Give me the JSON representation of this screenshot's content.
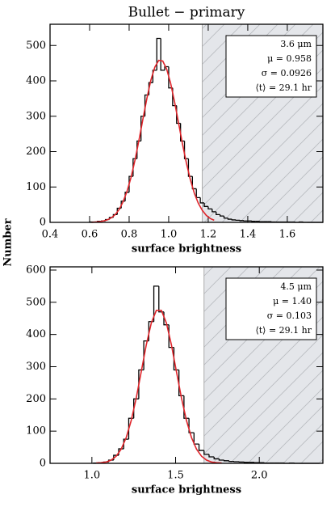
{
  "title": "Bullet − primary",
  "ylabel": "Number",
  "chart_data": [
    {
      "type": "histogram",
      "xlabel": "surface brightness",
      "bins": [
        0.6,
        0.62,
        0.64,
        0.66,
        0.68,
        0.7,
        0.72,
        0.74,
        0.76,
        0.78,
        0.8,
        0.82,
        0.84,
        0.86,
        0.88,
        0.9,
        0.92,
        0.94,
        0.96,
        0.98,
        1.0,
        1.02,
        1.04,
        1.06,
        1.08,
        1.1,
        1.12,
        1.14,
        1.16,
        1.18,
        1.2,
        1.22,
        1.24,
        1.26,
        1.28,
        1.3,
        1.32,
        1.34,
        1.36,
        1.38,
        1.4,
        1.42,
        1.44,
        1.46,
        1.48,
        1.5,
        1.52,
        1.54,
        1.56,
        1.58,
        1.6,
        1.62,
        1.64,
        1.66,
        1.68,
        1.7,
        1.72,
        1.74,
        1.76,
        1.78
      ],
      "counts": [
        1,
        1,
        3,
        4,
        8,
        14,
        22,
        40,
        60,
        85,
        130,
        180,
        230,
        300,
        360,
        395,
        430,
        520,
        430,
        440,
        380,
        330,
        280,
        230,
        180,
        130,
        95,
        70,
        55,
        45,
        38,
        30,
        22,
        18,
        12,
        9,
        7,
        6,
        5,
        4,
        4,
        3,
        3,
        2,
        2,
        2,
        1,
        1,
        1,
        1,
        1,
        1,
        0,
        1,
        0,
        0,
        0,
        0,
        0
      ],
      "color": "#000000",
      "fit": {
        "color": "#e0252b",
        "x": [
          0.61,
          0.63,
          0.65,
          0.67,
          0.69,
          0.71,
          0.73,
          0.75,
          0.77,
          0.79,
          0.81,
          0.83,
          0.85,
          0.87,
          0.89,
          0.91,
          0.93,
          0.95,
          0.97,
          0.99,
          1.01,
          1.03,
          1.05,
          1.07,
          1.09,
          1.11,
          1.13,
          1.15,
          1.17,
          1.19,
          1.21,
          1.23
        ],
        "values": [
          0,
          1,
          2,
          4,
          7,
          13,
          22,
          37,
          59,
          89,
          128,
          177,
          233,
          293,
          351,
          402,
          439,
          458,
          456,
          433,
          393,
          340,
          281,
          221,
          167,
          120,
          82,
          54,
          34,
          20,
          11,
          6
        ]
      },
      "shade_from": 1.17,
      "annotations": [
        "3.6 μm",
        "μ = 0.958",
        "σ = 0.0926",
        "⟨t⟩ = 29.1 hr"
      ],
      "xlim": [
        0.4,
        1.78
      ],
      "ylim": [
        0,
        560
      ],
      "xticks": [
        0.4,
        0.6,
        0.8,
        {
          "value": 1.0,
          "label": "1.0"
        },
        1.2,
        1.4,
        1.6
      ],
      "yticks": [
        0,
        100,
        200,
        300,
        400,
        500
      ]
    },
    {
      "type": "histogram",
      "xlabel": "surface brightness",
      "bins": [
        1.01,
        1.04,
        1.07,
        1.1,
        1.13,
        1.16,
        1.19,
        1.22,
        1.25,
        1.28,
        1.31,
        1.34,
        1.37,
        1.4,
        1.43,
        1.46,
        1.49,
        1.52,
        1.55,
        1.58,
        1.61,
        1.64,
        1.67,
        1.7,
        1.73,
        1.76,
        1.79,
        1.82,
        1.85,
        1.88,
        1.91,
        1.94,
        1.97,
        2.0,
        2.03,
        2.06,
        2.09,
        2.12,
        2.15,
        2.18,
        2.21,
        2.24,
        2.27,
        2.3,
        2.33,
        2.36
      ],
      "counts": [
        1,
        2,
        4,
        10,
        25,
        45,
        75,
        140,
        200,
        290,
        380,
        440,
        550,
        470,
        430,
        360,
        290,
        210,
        140,
        95,
        60,
        40,
        28,
        20,
        14,
        10,
        8,
        6,
        5,
        4,
        3,
        3,
        2,
        2,
        1,
        1,
        1,
        1,
        0,
        1,
        0,
        0,
        0,
        0,
        0
      ],
      "color": "#000000",
      "fit": {
        "color": "#e0252b",
        "x": [
          1.025,
          1.055,
          1.085,
          1.115,
          1.145,
          1.175,
          1.205,
          1.235,
          1.265,
          1.295,
          1.325,
          1.355,
          1.385,
          1.415,
          1.445,
          1.475,
          1.505,
          1.535,
          1.565,
          1.595,
          1.625,
          1.655,
          1.685,
          1.715,
          1.745,
          1.775
        ],
        "values": [
          1,
          2,
          4,
          10,
          22,
          44,
          80,
          133,
          203,
          285,
          368,
          436,
          475,
          475,
          436,
          368,
          285,
          203,
          133,
          80,
          44,
          22,
          10,
          4,
          2,
          1
        ]
      },
      "shade_from": 1.67,
      "annotations": [
        "4.5 μm",
        "μ = 1.40",
        "σ = 0.103",
        "⟨t⟩ = 29.1 hr"
      ],
      "xlim": [
        0.75,
        2.38
      ],
      "ylim": [
        0,
        610
      ],
      "xticks": [
        {
          "value": 1.0,
          "label": "1.0"
        },
        1.5,
        {
          "value": 2.0,
          "label": "2.0"
        }
      ],
      "yticks": [
        0,
        100,
        200,
        300,
        400,
        500,
        600
      ]
    }
  ]
}
